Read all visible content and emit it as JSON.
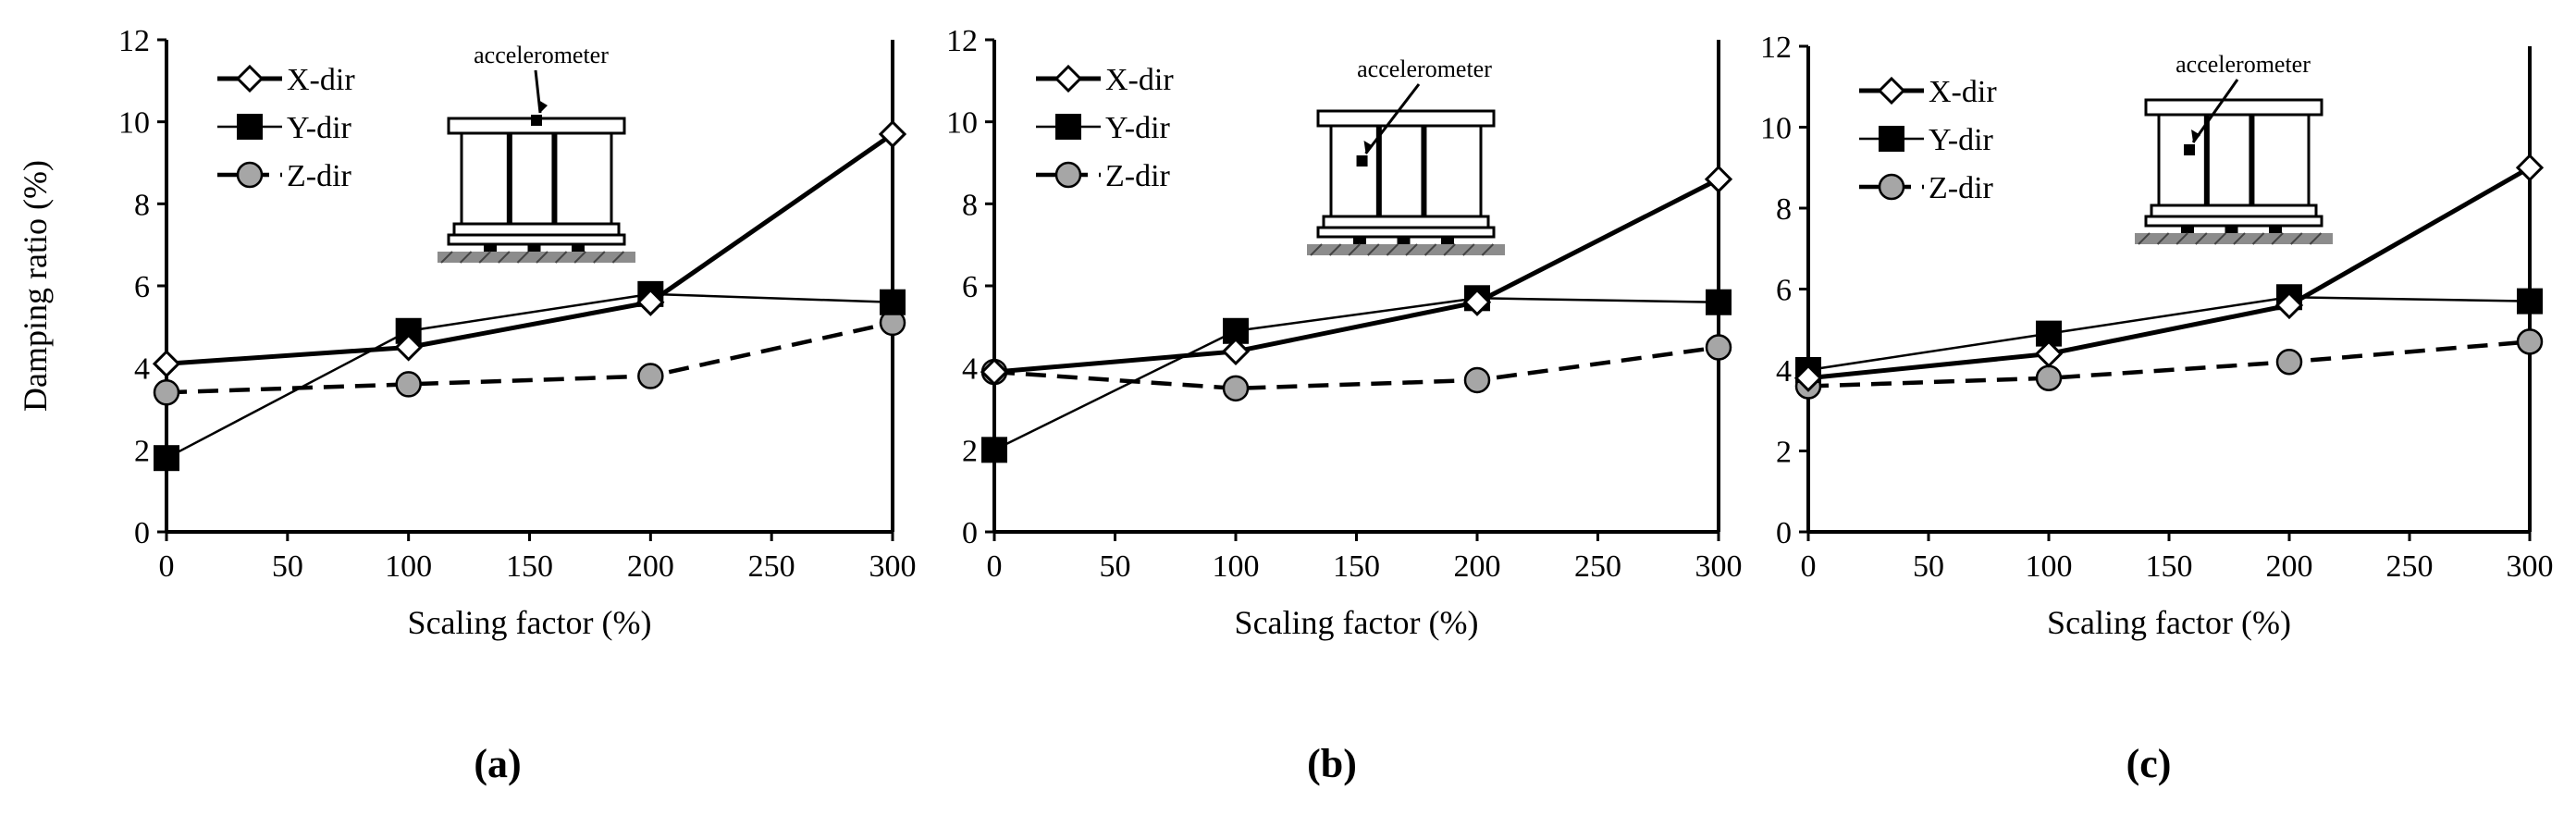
{
  "figure": {
    "captions": [
      "(a)",
      "(b)",
      "(c)"
    ],
    "inset_label": "accelerometer"
  },
  "chart_data": [
    {
      "type": "line",
      "panel": "(a)",
      "title": "",
      "xlabel": "Scaling factor (%)",
      "ylabel": "Damping ratio (%)",
      "xlim": [
        0,
        300
      ],
      "ylim": [
        0,
        12
      ],
      "xticks": [
        0,
        50,
        100,
        150,
        200,
        250,
        300
      ],
      "yticks": [
        0,
        2,
        4,
        6,
        8,
        10,
        12
      ],
      "grid": false,
      "legend_position": "top-left",
      "x": [
        0,
        100,
        200,
        300
      ],
      "series": [
        {
          "name": "X-dir",
          "values": [
            4.1,
            4.5,
            5.6,
            9.7
          ],
          "marker": "diamond",
          "line": "thick-solid"
        },
        {
          "name": "Y-dir",
          "values": [
            1.8,
            4.9,
            5.8,
            5.6
          ],
          "marker": "square",
          "line": "thin-solid"
        },
        {
          "name": "Z-dir",
          "values": [
            3.4,
            3.6,
            3.8,
            5.1
          ],
          "marker": "circle",
          "line": "dashed"
        }
      ]
    },
    {
      "type": "line",
      "panel": "(b)",
      "title": "",
      "xlabel": "Scaling factor (%)",
      "ylabel": "",
      "xlim": [
        0,
        300
      ],
      "ylim": [
        0,
        12
      ],
      "xticks": [
        0,
        50,
        100,
        150,
        200,
        250,
        300
      ],
      "yticks": [
        0,
        2,
        4,
        6,
        8,
        10,
        12
      ],
      "grid": false,
      "legend_position": "top-left",
      "x": [
        0,
        100,
        200,
        300
      ],
      "series": [
        {
          "name": "X-dir",
          "values": [
            3.9,
            4.4,
            5.6,
            8.6
          ],
          "marker": "diamond",
          "line": "thick-solid"
        },
        {
          "name": "Y-dir",
          "values": [
            2.0,
            4.9,
            5.7,
            5.6
          ],
          "marker": "square",
          "line": "thin-solid"
        },
        {
          "name": "Z-dir",
          "values": [
            3.9,
            3.5,
            3.7,
            4.5
          ],
          "marker": "circle",
          "line": "dashed"
        }
      ]
    },
    {
      "type": "line",
      "panel": "(c)",
      "title": "",
      "xlabel": "Scaling factor (%)",
      "ylabel": "",
      "xlim": [
        0,
        300
      ],
      "ylim": [
        0,
        12
      ],
      "xticks": [
        0,
        50,
        100,
        150,
        200,
        250,
        300
      ],
      "yticks": [
        0,
        2,
        4,
        6,
        8,
        10,
        12
      ],
      "grid": false,
      "legend_position": "top-left",
      "x": [
        0,
        100,
        200,
        300
      ],
      "series": [
        {
          "name": "X-dir",
          "values": [
            3.8,
            4.4,
            5.6,
            9.0
          ],
          "marker": "diamond",
          "line": "thick-solid"
        },
        {
          "name": "Y-dir",
          "values": [
            4.0,
            4.9,
            5.8,
            5.7
          ],
          "marker": "square",
          "line": "thin-solid"
        },
        {
          "name": "Z-dir",
          "values": [
            3.6,
            3.8,
            4.2,
            4.7
          ],
          "marker": "circle",
          "line": "dashed"
        }
      ]
    }
  ]
}
